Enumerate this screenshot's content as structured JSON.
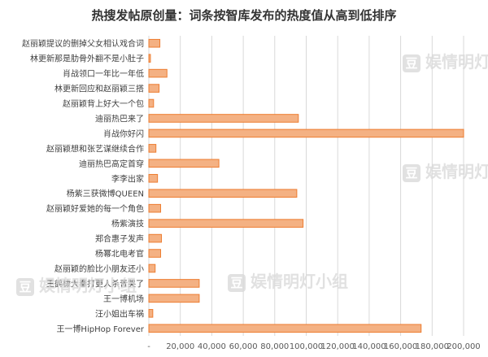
{
  "title": "热搜发帖原创量：词条按智库发布的热度值从高到低排序",
  "watermark": "娱情明灯小组",
  "watermark_icon": "豆",
  "chart_data": {
    "type": "bar",
    "orientation": "horizontal",
    "categories": [
      "赵丽颖提议的删掉父女相认戏合词",
      "林更新那是肋骨外翻不是小肚子",
      "肖战领口一年比一年低",
      "林更新回应和赵丽颖三搭",
      "赵丽颖背上好大一个包",
      "迪丽热巴来了",
      "肖战你好闪",
      "赵丽颖想和张艺谋继续合作",
      "迪丽热巴高定首穿",
      "李李出家",
      "杨紫三获微博QUEEN",
      "赵丽颖好爱她的每一个角色",
      "杨紫演技",
      "郑合惠子发声",
      "杨幂北电考官",
      "赵丽颖的脸比小朋友还小",
      "王鹤棣大奉打更人杀青哭了",
      "王一博机场",
      "汪小姐出车祸",
      "王一博HipHop Forever"
    ],
    "values": [
      7000,
      1000,
      11500,
      6500,
      3000,
      95000,
      200000,
      4500,
      44500,
      5500,
      94000,
      7500,
      98000,
      8000,
      7500,
      4000,
      32000,
      32000,
      2500,
      173000
    ],
    "xlim": [
      0,
      200000
    ],
    "xticks": [
      "-",
      "20,000",
      "40,000",
      "60,000",
      "80,000",
      "100,000",
      "120,000",
      "140,000",
      "160,000",
      "180,000",
      "200,000"
    ],
    "grid": true,
    "legend": "none",
    "bar_color": "#f4b183",
    "bar_edge_color": "#ed7d31"
  }
}
